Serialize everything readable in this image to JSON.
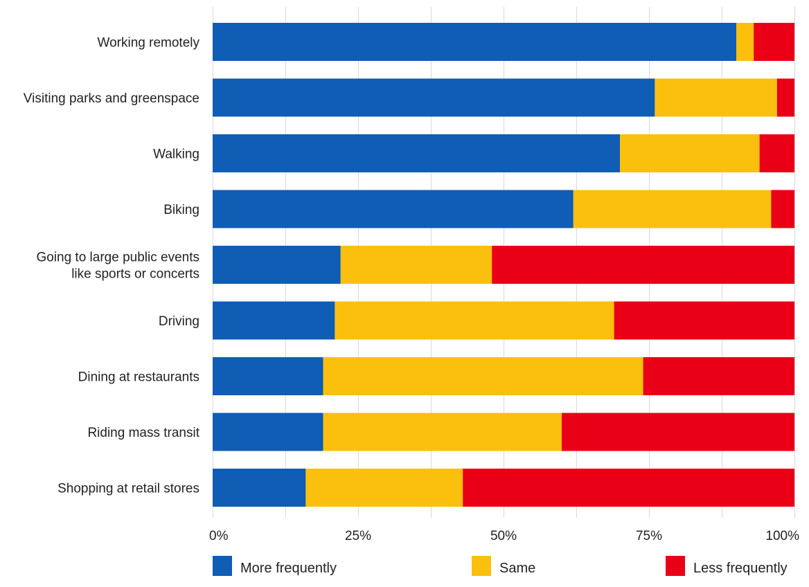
{
  "chart_data": {
    "type": "bar",
    "orientation": "horizontal",
    "stacked": true,
    "categories": [
      [
        "Working remotely"
      ],
      [
        "Visiting parks and greenspace"
      ],
      [
        "Walking"
      ],
      [
        "Biking"
      ],
      [
        "Going to large public events",
        "like sports or concerts"
      ],
      [
        "Driving"
      ],
      [
        "Dining at restaurants"
      ],
      [
        "Riding mass transit"
      ],
      [
        "Shopping at retail stores"
      ]
    ],
    "series": [
      {
        "name": "More frequently",
        "color": "#0f5db4",
        "values": [
          90,
          76,
          70,
          62,
          22,
          21,
          19,
          19,
          16
        ]
      },
      {
        "name": "Same",
        "color": "#fbc00d",
        "values": [
          3,
          21,
          24,
          34,
          26,
          48,
          55,
          41,
          27
        ]
      },
      {
        "name": "Less frequently",
        "color": "#ea0016",
        "values": [
          7,
          3,
          6,
          4,
          52,
          31,
          26,
          40,
          57
        ]
      }
    ],
    "xlim": [
      0,
      100
    ],
    "x_ticks": [
      {
        "value": 0,
        "label": "0%"
      },
      {
        "value": 25,
        "label": "25%"
      },
      {
        "value": 50,
        "label": "50%"
      },
      {
        "value": 75,
        "label": "75%"
      },
      {
        "value": 100,
        "label": "100%"
      }
    ],
    "minor_grid": [
      12.5,
      37.5,
      62.5,
      87.5
    ],
    "grid": true,
    "legend_position": "bottom",
    "title": "",
    "xlabel": "",
    "ylabel": ""
  }
}
